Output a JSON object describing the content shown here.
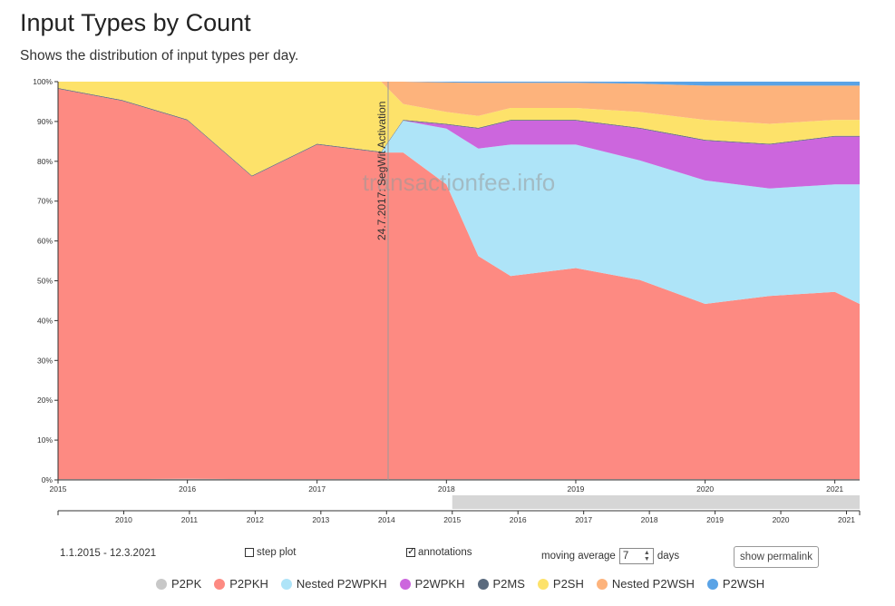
{
  "header": {
    "title": "Input Types by Count",
    "subtitle": "Shows the distribution of input types per day."
  },
  "controls": {
    "date_range": "1.1.2015 - 12.3.2021",
    "step_plot_label": "step plot",
    "step_plot_checked": false,
    "annotations_label": "annotations",
    "annotations_checked": true,
    "moving_average_label": "moving average",
    "moving_average_value": "7",
    "moving_average_unit": "days",
    "permalink_label": "show permalink"
  },
  "annotation": {
    "label": "24.7.2017: SegWit Activation"
  },
  "watermark": "transactionfee.info",
  "colors": {
    "P2PK": "#c8c8c8",
    "P2PKH": "#fd8a82",
    "Nested P2WPKH": "#aee4f8",
    "P2WPKH": "#cc66dd",
    "P2MS": "#5a6a7e",
    "P2SH": "#fde26a",
    "Nested P2WSH": "#fdb37c",
    "P2WSH": "#5aa3e6"
  },
  "chart_data": {
    "type": "area",
    "stacked": true,
    "normalized": true,
    "x": [
      "2015-01",
      "2015-07",
      "2016-01",
      "2016-07",
      "2017-01",
      "2017-07",
      "2017-09",
      "2018-01",
      "2018-04",
      "2018-07",
      "2019-01",
      "2019-07",
      "2020-01",
      "2020-07",
      "2021-01",
      "2021-03"
    ],
    "series": [
      {
        "name": "P2PK",
        "values": [
          0.2,
          0.2,
          0.3,
          0.2,
          0.2,
          0.2,
          0.2,
          0.2,
          0.2,
          0.2,
          0.2,
          0.2,
          0.2,
          0.2,
          0.2,
          0.2
        ]
      },
      {
        "name": "P2PKH",
        "values": [
          98,
          95,
          90,
          76,
          84,
          82,
          82,
          74,
          56,
          51,
          53,
          50,
          44,
          46,
          47,
          44
        ]
      },
      {
        "name": "Nested P2WPKH",
        "values": [
          0,
          0,
          0,
          0,
          0,
          0,
          8,
          14,
          27,
          33,
          31,
          30,
          31,
          27,
          27,
          30
        ]
      },
      {
        "name": "P2WPKH",
        "values": [
          0,
          0,
          0,
          0,
          0,
          0,
          0,
          1,
          5,
          6,
          6,
          8,
          10,
          11,
          12,
          12
        ]
      },
      {
        "name": "P2MS",
        "values": [
          0.2,
          0.2,
          0.2,
          0.2,
          0.2,
          0.2,
          0.2,
          0.2,
          0.2,
          0.2,
          0.2,
          0.2,
          0.2,
          0.2,
          0.2,
          0.2
        ]
      },
      {
        "name": "P2SH",
        "values": [
          1.6,
          4.6,
          9.5,
          23.6,
          15.6,
          17.6,
          4,
          3,
          3,
          3,
          3,
          4,
          5,
          5,
          4,
          4
        ]
      },
      {
        "name": "Nested P2WSH",
        "values": [
          0,
          0,
          0,
          0,
          0,
          0,
          5.6,
          7.4,
          8.3,
          6.3,
          6.3,
          7.1,
          8.6,
          9.6,
          8.6,
          8.6
        ]
      },
      {
        "name": "P2WSH",
        "values": [
          0,
          0,
          0,
          0,
          0,
          0,
          0,
          0.2,
          0.3,
          0.3,
          0.3,
          0.5,
          1,
          1,
          1,
          1
        ]
      }
    ],
    "ylim": [
      0,
      100
    ],
    "y_ticks": [
      "0%",
      "10%",
      "20%",
      "30%",
      "40%",
      "50%",
      "60%",
      "70%",
      "80%",
      "90%",
      "100%"
    ],
    "x_ticks": [
      "2015",
      "2016",
      "2017",
      "2018",
      "2019",
      "2020",
      "2021"
    ],
    "navigator_ticks": [
      "2010",
      "2011",
      "2012",
      "2013",
      "2014",
      "2015",
      "2016",
      "2017",
      "2018",
      "2019",
      "2020",
      "2021"
    ],
    "legend": [
      "P2PK",
      "P2PKH",
      "Nested P2WPKH",
      "P2WPKH",
      "P2MS",
      "P2SH",
      "Nested P2WSH",
      "P2WSH"
    ],
    "legend_position": "bottom"
  }
}
